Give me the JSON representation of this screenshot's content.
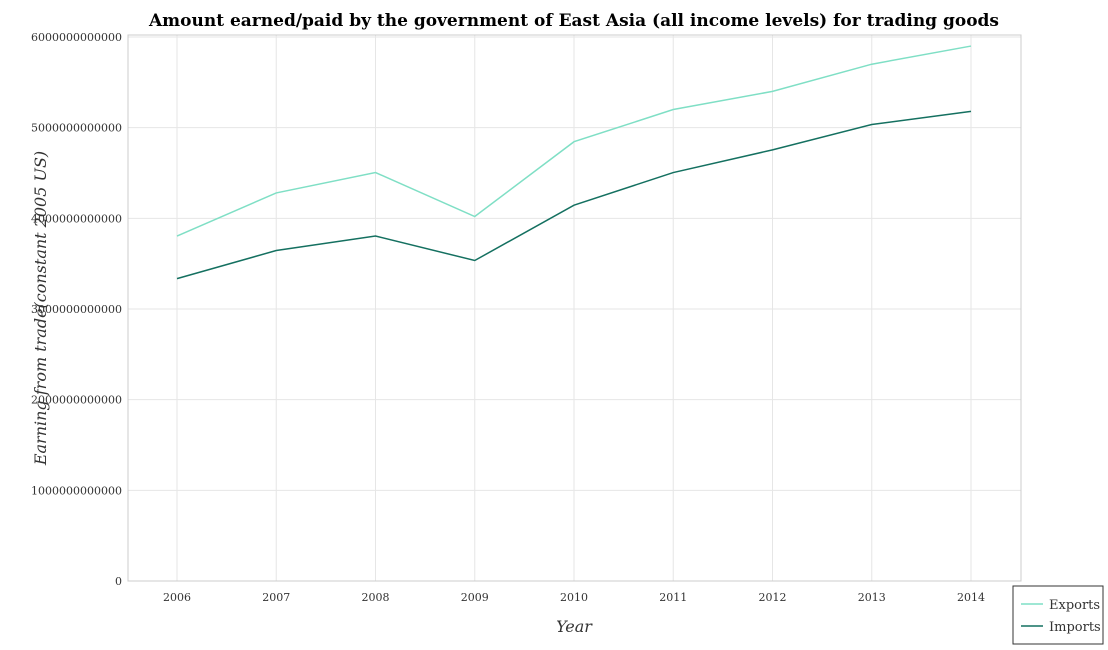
{
  "chart_data": {
    "type": "line",
    "title": "Amount earned/paid by the government of East Asia (all income levels) for trading goods",
    "xlabel": "Year",
    "ylabel": "Earning from trade(constant 2005 US)",
    "x": [
      "2006",
      "2007",
      "2008",
      "2009",
      "2010",
      "2011",
      "2012",
      "2013",
      "2014"
    ],
    "ylim": [
      0,
      6000000000000
    ],
    "yticks": [
      0,
      1000000000000,
      2000000000000,
      3000000000000,
      4000000000000,
      5000000000000,
      6000000000000
    ],
    "ytick_labels": [
      "0",
      "1000000000000",
      "2000000000000",
      "3000000000000",
      "4000000000000",
      "5000000000000",
      "6000000000000"
    ],
    "grid": true,
    "legend_position": "bottom-right",
    "series": [
      {
        "name": "Exports",
        "color": "#7fdfc5",
        "values": [
          3805000000000,
          4280000000000,
          4505000000000,
          4020000000000,
          4845000000000,
          5200000000000,
          5400000000000,
          5700000000000,
          5900000000000
        ]
      },
      {
        "name": "Imports",
        "color": "#147060",
        "values": [
          3335000000000,
          3645000000000,
          3805000000000,
          3535000000000,
          4145000000000,
          4505000000000,
          4755000000000,
          5035000000000,
          5180000000000
        ]
      }
    ]
  }
}
